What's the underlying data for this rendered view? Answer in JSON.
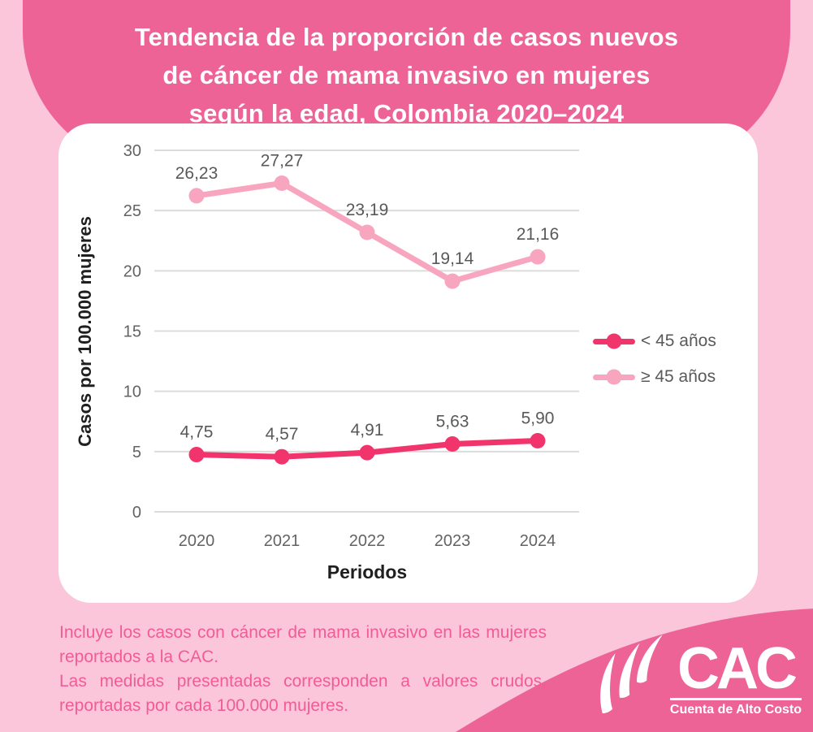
{
  "page": {
    "background_color": "#fbc6da",
    "accent_color": "#ee6396",
    "card_color": "#ffffff",
    "note_text_color": "#f25c93"
  },
  "header": {
    "title": "Tendencia de la proporción de casos nuevos\nde cáncer de mama invasivo en mujeres\nsegún la edad, Colombia 2020–2024"
  },
  "chart_data": {
    "type": "line",
    "title": "Tendencia de la proporción de casos nuevos de cáncer de mama invasivo en mujeres según la edad, Colombia 2020–2024",
    "categories": [
      "2020",
      "2021",
      "2022",
      "2023",
      "2024"
    ],
    "series": [
      {
        "name": "< 45 años",
        "color": "#f1356c",
        "values": [
          4.75,
          4.57,
          4.91,
          5.63,
          5.9
        ],
        "labels": [
          "4,75",
          "4,57",
          "4,91",
          "5,63",
          "5,90"
        ]
      },
      {
        "name": "≥ 45 años",
        "color": "#f8a5c0",
        "values": [
          26.23,
          27.27,
          23.19,
          19.14,
          21.16
        ],
        "labels": [
          "26,23",
          "27,27",
          "23,19",
          "19,14",
          "21,16"
        ]
      }
    ],
    "xlabel": "Periodos",
    "ylabel": "Casos por 100.000 mujeres",
    "ylim": [
      0,
      30
    ],
    "yticks": [
      0,
      5,
      10,
      15,
      20,
      25,
      30
    ],
    "grid": true,
    "legend_position": "right",
    "gridline_color": "#dcdcdc",
    "tick_color": "#626365",
    "data_label_color": "#58595b"
  },
  "footer": {
    "note_line1": "Incluye los casos con cáncer de mama invasivo en las mujeres reportados a la CAC.",
    "note_line2": "Las medidas presentadas corresponden a valores crudos, reportadas por cada 100.000 mujeres."
  },
  "logo": {
    "acronym": "CAC",
    "tagline": "Cuenta de Alto Costo"
  }
}
